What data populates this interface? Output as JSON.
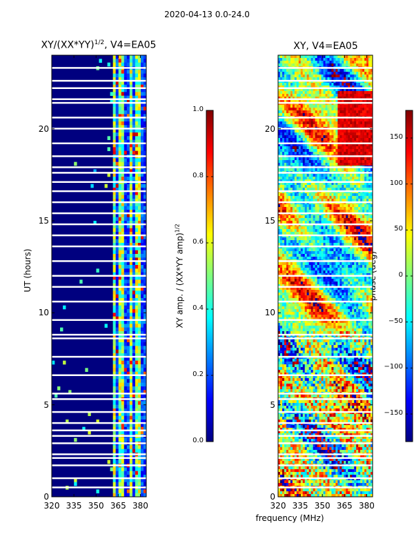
{
  "figure": {
    "suptitle": "2020-04-13 0.0-24.0",
    "shared_xlabel": "frequency (MHz)"
  },
  "colors": {
    "jet": [
      "#00007f",
      "#0000ff",
      "#007fff",
      "#00ffff",
      "#7fff7f",
      "#ffff00",
      "#ff7f00",
      "#ff0000",
      "#7f0000"
    ],
    "gap": "#ffffff",
    "frame": "#000000"
  },
  "chart_data": [
    {
      "type": "heatmap",
      "title": "XY/(XX*YY)^1/2, V4=EA05",
      "title_base": "XY/(XX*YY)",
      "title_exp": "1/2",
      "title_tail": ", V4=EA05",
      "xlabel": "",
      "ylabel": "UT (hours)",
      "xlim": [
        320,
        384
      ],
      "ylim": [
        0,
        24
      ],
      "xticks": [
        320,
        335,
        350,
        365,
        380
      ],
      "yticks": [
        0,
        5,
        10,
        15,
        20
      ],
      "colorbar": {
        "label": "XY amp. / (XX*YY amp)",
        "label_exp": "1/2",
        "range": [
          0.0,
          1.0
        ],
        "ticks": [
          0.0,
          0.2,
          0.4,
          0.6,
          0.8,
          1.0
        ],
        "tick_labels": [
          "0.0",
          "0.2",
          "0.4",
          "0.6",
          "0.8",
          "1.0"
        ]
      },
      "bright_channels_mhz": [
        [
          361,
          364
        ],
        [
          366,
          369
        ],
        [
          370,
          371.5
        ],
        [
          372,
          375.5
        ],
        [
          377,
          380.5
        ]
      ],
      "gap_hours": [
        0.5,
        1.0,
        1.7,
        2.1,
        2.3,
        2.9,
        3.3,
        3.6,
        4.0,
        4.6,
        5.3,
        5.6,
        6.6,
        7.6,
        8.6,
        8.8,
        9.6,
        10.6,
        11.4,
        12.0,
        12.8,
        13.6,
        14.2,
        14.8,
        15.4,
        16.0,
        16.6,
        17.1,
        17.6,
        17.9,
        18.5,
        19.2,
        20.0,
        20.6,
        21.4,
        21.6,
        22.2,
        22.6,
        23.3
      ]
    },
    {
      "type": "heatmap",
      "title": "XY, V4=EA05",
      "xlabel": "",
      "ylabel": "",
      "xlim": [
        320,
        384
      ],
      "ylim": [
        0,
        24
      ],
      "xticks": [
        320,
        335,
        350,
        365,
        380
      ],
      "yticks": [
        0,
        5,
        10,
        15,
        20
      ],
      "colorbar": {
        "label": "phase (deg)",
        "range": [
          -180,
          180
        ],
        "ticks": [
          -150,
          -100,
          -50,
          0,
          50,
          100,
          150
        ],
        "tick_labels": [
          "−150",
          "−100",
          "−50",
          "0",
          "50",
          "100",
          "150"
        ]
      },
      "gap_hours": [
        0.5,
        1.0,
        1.7,
        2.1,
        2.3,
        2.9,
        3.3,
        3.6,
        4.0,
        4.6,
        5.3,
        5.6,
        6.6,
        7.6,
        8.6,
        8.8,
        9.6,
        10.6,
        11.4,
        12.0,
        12.8,
        13.6,
        14.2,
        14.8,
        15.4,
        16.0,
        16.6,
        17.1,
        17.6,
        17.9,
        18.5,
        19.2,
        20.0,
        20.6,
        21.4,
        21.6,
        22.2,
        22.6,
        23.3
      ]
    }
  ]
}
